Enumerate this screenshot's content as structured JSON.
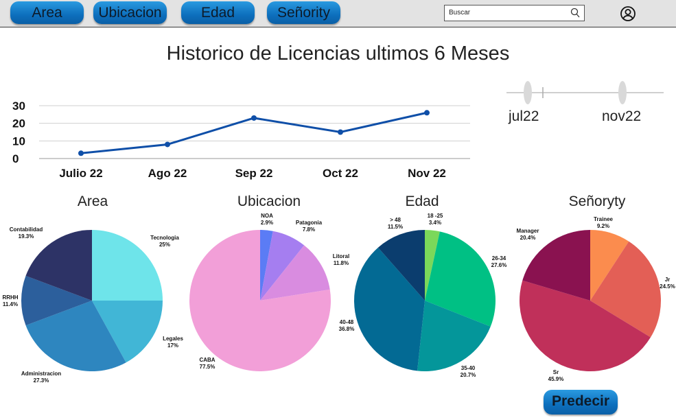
{
  "nav": {
    "buttons": [
      {
        "label": "Area"
      },
      {
        "label": "Ubicacion"
      },
      {
        "label": "Edad"
      },
      {
        "label": "Señority"
      }
    ],
    "search_placeholder": "Buscar"
  },
  "page": {
    "title": "Historico de Licencias ultimos 6 Meses",
    "predict_label": "Predecir"
  },
  "slider": {
    "start_label": "jul22",
    "end_label": "nov22"
  },
  "chart_data": [
    {
      "type": "line",
      "title": "",
      "categories": [
        "Julio 22",
        "Ago 22",
        "Sep 22",
        "Oct 22",
        "Nov 22"
      ],
      "values": [
        3,
        8,
        23,
        15,
        26
      ],
      "yticks": [
        0,
        10,
        20,
        30
      ],
      "ylim": [
        0,
        30
      ],
      "grid": true,
      "color": "#0f4fa8"
    },
    {
      "type": "pie",
      "title": "Area",
      "slices": [
        {
          "label": "Tecnologia",
          "pct": "25%",
          "value": 25,
          "color": "#6ee4ea"
        },
        {
          "label": "Legales",
          "pct": "17%",
          "value": 17,
          "color": "#41b6d6"
        },
        {
          "label": "Administracion",
          "pct": "27.3%",
          "value": 27.3,
          "color": "#2e86bf"
        },
        {
          "label": "RRHH",
          "pct": "11.4%",
          "value": 11.4,
          "color": "#2c5f9c"
        },
        {
          "label": "Contabilidad",
          "pct": "19.3%",
          "value": 19.3,
          "color": "#2d3366"
        }
      ]
    },
    {
      "type": "pie",
      "title": "Ubicacion",
      "slices": [
        {
          "label": "NOA",
          "pct": "2.9%",
          "value": 2.9,
          "color": "#5b7cf5"
        },
        {
          "label": "Patagonia",
          "pct": "7.8%",
          "value": 7.8,
          "color": "#a57ef0"
        },
        {
          "label": "Litoral",
          "pct": "11.8%",
          "value": 11.8,
          "color": "#d98ce0"
        },
        {
          "label": "CABA",
          "pct": "77.5%",
          "value": 77.5,
          "color": "#f29fd8"
        }
      ]
    },
    {
      "type": "pie",
      "title": "Edad",
      "slices": [
        {
          "label": "18 -25",
          "pct": "3.4%",
          "value": 3.4,
          "color": "#7bd85a"
        },
        {
          "label": "26-34",
          "pct": "27.6%",
          "value": 27.6,
          "color": "#00c084"
        },
        {
          "label": "35-40",
          "pct": "20.7%",
          "value": 20.7,
          "color": "#04969a"
        },
        {
          "label": "40-48",
          "pct": "36.8%",
          "value": 36.8,
          "color": "#036a94"
        },
        {
          "label": "> 48",
          "pct": "11.5%",
          "value": 11.5,
          "color": "#0b3d6e"
        }
      ]
    },
    {
      "type": "pie",
      "title": "Señoryty",
      "slices": [
        {
          "label": "Trainee",
          "pct": "9.2%",
          "value": 9.2,
          "color": "#fb8c4e"
        },
        {
          "label": "Jr",
          "pct": "24.5%",
          "value": 24.5,
          "color": "#e35f56"
        },
        {
          "label": "Sr",
          "pct": "45.9%",
          "value": 45.9,
          "color": "#c0305a"
        },
        {
          "label": "Manager",
          "pct": "20.4%",
          "value": 20.4,
          "color": "#8a1250"
        }
      ]
    }
  ]
}
